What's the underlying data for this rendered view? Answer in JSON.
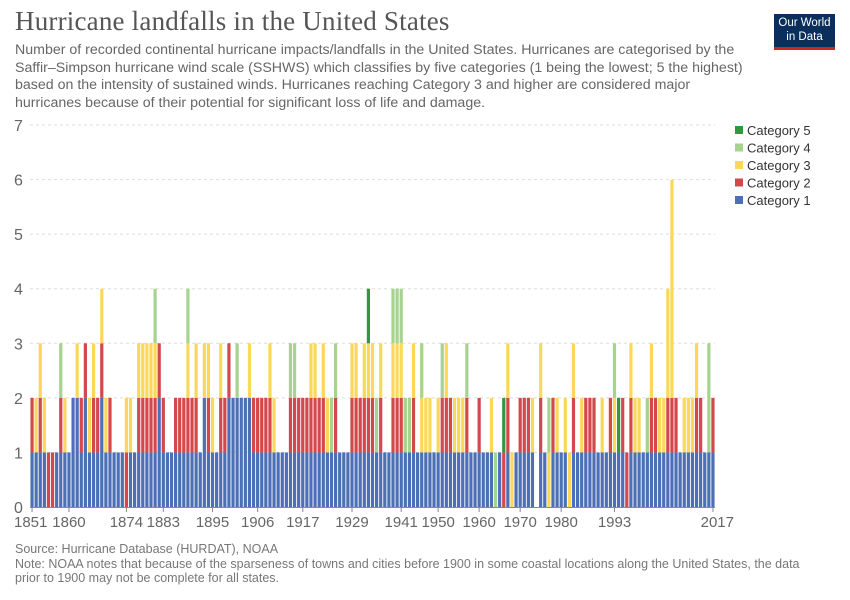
{
  "header": {
    "title": "Hurricane landfalls in the United States",
    "subtitle": "Number of recorded continental hurricane impacts/landfalls in the United States. Hurricanes are categorised by the Saffir–Simpson hurricane wind scale (SSHWS) which classifies by five categories (1 being the lowest; 5 the highest) based on the intensity of sustained winds. Hurricanes reaching Category 3 and higher are considered major hurricanes because of their potential for significant loss of life and damage.",
    "logo_line1": "Our World",
    "logo_line2": "in Data"
  },
  "footer": {
    "source": "Source: Hurricane Database (HURDAT), NOAA",
    "note": "Note: NOAA notes that because of the sparseness of towns and cities before 1900 in some coastal locations along the United States, the data prior to 1900 may not be complete for all states."
  },
  "colors": {
    "cat1": "#4c6fb5",
    "cat2": "#d4474a",
    "cat3": "#fbd85a",
    "cat4": "#a6d38f",
    "cat5": "#2e9a3e",
    "grid": "#dddddd",
    "axis": "#888888",
    "text": "#666666"
  },
  "chart_data": {
    "type": "bar",
    "stacked": true,
    "title": "Hurricane landfalls in the United States",
    "xlabel": "",
    "ylabel": "",
    "ylim": [
      0,
      7
    ],
    "yticks": [
      0,
      1,
      2,
      3,
      4,
      5,
      6,
      7
    ],
    "xticks": [
      1851,
      1860,
      1874,
      1883,
      1895,
      1906,
      1917,
      1929,
      1941,
      1950,
      1960,
      1970,
      1980,
      1993,
      2017
    ],
    "years_start": 1851,
    "years_end": 2017,
    "legend_position": "top-right",
    "series": [
      {
        "name": "Category 1",
        "key": "cat1",
        "values": [
          1,
          1,
          1,
          1,
          0,
          0,
          1,
          1,
          1,
          1,
          2,
          2,
          1,
          2,
          1,
          1,
          1,
          2,
          1,
          1,
          1,
          1,
          1,
          0,
          1,
          1,
          1,
          1,
          1,
          1,
          1,
          2,
          1,
          1,
          1,
          1,
          1,
          1,
          1,
          1,
          1,
          1,
          2,
          1,
          1,
          1,
          1,
          1,
          2,
          2,
          2,
          2,
          2,
          2,
          1,
          1,
          1,
          1,
          1,
          1,
          1,
          1,
          1,
          1,
          1,
          1,
          1,
          1,
          1,
          1,
          1,
          1,
          1,
          1,
          1,
          1,
          1,
          1,
          1,
          1,
          1,
          1,
          1,
          1,
          1,
          1,
          1,
          1,
          1,
          1,
          1,
          1,
          1,
          1,
          1,
          1,
          1,
          1,
          1,
          1,
          1,
          1,
          1,
          1,
          1,
          1,
          1,
          1,
          1,
          1,
          1,
          1,
          1,
          0,
          1,
          0,
          1,
          0,
          1,
          1,
          1,
          1,
          1,
          0,
          1,
          1,
          0,
          1,
          1,
          1,
          1,
          0,
          1,
          1,
          1,
          1,
          1,
          1,
          1,
          1,
          1,
          1,
          1,
          1,
          1,
          0,
          1,
          1,
          1,
          1,
          1,
          1,
          1,
          1,
          1,
          1,
          1,
          1,
          1,
          1,
          1,
          1,
          1,
          1,
          1,
          1,
          1
        ]
      },
      {
        "name": "Category 2",
        "key": "cat2",
        "values": [
          1,
          0,
          1,
          0,
          1,
          1,
          0,
          1,
          0,
          0,
          0,
          0,
          1,
          1,
          0,
          1,
          1,
          1,
          0,
          1,
          0,
          0,
          0,
          1,
          0,
          0,
          1,
          1,
          1,
          1,
          1,
          1,
          1,
          0,
          0,
          1,
          1,
          1,
          1,
          1,
          1,
          0,
          0,
          1,
          0,
          0,
          1,
          1,
          1,
          0,
          0,
          0,
          0,
          0,
          1,
          1,
          1,
          1,
          1,
          0,
          0,
          0,
          0,
          1,
          1,
          1,
          1,
          1,
          1,
          1,
          1,
          1,
          0,
          0,
          1,
          0,
          0,
          0,
          1,
          1,
          1,
          1,
          1,
          1,
          0,
          1,
          0,
          0,
          1,
          1,
          1,
          0,
          0,
          1,
          0,
          0,
          0,
          0,
          0,
          0,
          1,
          1,
          1,
          0,
          0,
          0,
          1,
          0,
          0,
          1,
          0,
          0,
          0,
          0,
          0,
          1,
          1,
          0,
          0,
          1,
          1,
          1,
          0,
          0,
          1,
          0,
          0,
          1,
          0,
          0,
          0,
          0,
          1,
          0,
          0,
          1,
          1,
          1,
          0,
          0,
          0,
          1,
          0,
          0,
          1,
          1,
          1,
          0,
          0,
          0,
          0,
          1,
          1,
          0,
          0,
          1,
          1,
          1,
          0,
          0,
          0,
          0,
          1,
          1,
          0,
          0,
          1
        ]
      },
      {
        "name": "Category 3",
        "key": "cat3",
        "values": [
          0,
          1,
          1,
          1,
          0,
          0,
          0,
          0,
          1,
          0,
          0,
          1,
          0,
          0,
          1,
          1,
          0,
          1,
          1,
          0,
          0,
          0,
          0,
          1,
          1,
          0,
          1,
          1,
          1,
          1,
          1,
          0,
          0,
          0,
          0,
          0,
          0,
          0,
          1,
          0,
          1,
          0,
          1,
          1,
          1,
          0,
          1,
          0,
          0,
          0,
          0,
          0,
          0,
          1,
          0,
          0,
          0,
          0,
          1,
          1,
          0,
          0,
          0,
          0,
          0,
          0,
          0,
          0,
          1,
          1,
          0,
          1,
          1,
          0,
          0,
          0,
          0,
          0,
          1,
          1,
          0,
          1,
          1,
          1,
          0,
          1,
          0,
          0,
          1,
          1,
          1,
          0,
          0,
          1,
          0,
          1,
          1,
          1,
          0,
          1,
          0,
          1,
          0,
          1,
          1,
          1,
          0,
          0,
          0,
          0,
          0,
          0,
          1,
          0,
          0,
          0,
          1,
          1,
          0,
          0,
          0,
          0,
          1,
          0,
          1,
          0,
          1,
          0,
          1,
          0,
          1,
          1,
          1,
          0,
          1,
          0,
          0,
          0,
          0,
          1,
          0,
          0,
          1,
          0,
          0,
          0,
          1,
          1,
          1,
          0,
          0,
          1,
          0,
          1,
          1,
          2,
          4,
          0,
          0,
          1,
          1,
          1,
          1,
          0,
          0,
          0,
          0
        ]
      },
      {
        "name": "Category 4",
        "key": "cat4",
        "values": [
          0,
          0,
          0,
          0,
          0,
          0,
          0,
          1,
          0,
          0,
          0,
          0,
          0,
          0,
          0,
          0,
          0,
          0,
          0,
          0,
          0,
          0,
          0,
          0,
          0,
          0,
          0,
          0,
          0,
          0,
          1,
          0,
          0,
          0,
          0,
          0,
          0,
          0,
          1,
          0,
          0,
          0,
          0,
          0,
          0,
          0,
          0,
          0,
          0,
          0,
          1,
          0,
          0,
          0,
          0,
          0,
          0,
          0,
          0,
          0,
          0,
          0,
          0,
          1,
          1,
          0,
          0,
          0,
          0,
          0,
          0,
          0,
          0,
          1,
          1,
          0,
          0,
          0,
          0,
          0,
          0,
          0,
          0,
          0,
          1,
          0,
          0,
          0,
          1,
          1,
          1,
          1,
          1,
          0,
          0,
          1,
          0,
          0,
          0,
          0,
          1,
          0,
          0,
          0,
          0,
          0,
          1,
          0,
          0,
          0,
          0,
          0,
          0,
          1,
          0,
          0,
          0,
          0,
          0,
          0,
          0,
          0,
          0,
          0,
          0,
          0,
          1,
          0,
          0,
          0,
          0,
          0,
          0,
          0,
          0,
          0,
          0,
          0,
          0,
          0,
          0,
          0,
          1,
          0,
          0,
          0,
          0,
          0,
          0,
          0,
          1,
          0,
          0,
          0,
          0,
          0,
          0,
          0,
          0,
          0,
          0,
          0,
          0,
          0,
          0,
          2,
          0
        ]
      },
      {
        "name": "Category 5",
        "key": "cat5",
        "values": [
          0,
          0,
          0,
          0,
          0,
          0,
          0,
          0,
          0,
          0,
          0,
          0,
          0,
          0,
          0,
          0,
          0,
          0,
          0,
          0,
          0,
          0,
          0,
          0,
          0,
          0,
          0,
          0,
          0,
          0,
          0,
          0,
          0,
          0,
          0,
          0,
          0,
          0,
          0,
          0,
          0,
          0,
          0,
          0,
          0,
          0,
          0,
          0,
          0,
          0,
          0,
          0,
          0,
          0,
          0,
          0,
          0,
          0,
          0,
          0,
          0,
          0,
          0,
          0,
          0,
          0,
          0,
          0,
          0,
          0,
          0,
          0,
          0,
          0,
          0,
          0,
          0,
          0,
          0,
          0,
          0,
          0,
          1,
          0,
          0,
          0,
          0,
          0,
          0,
          0,
          0,
          0,
          0,
          0,
          0,
          0,
          0,
          0,
          0,
          0,
          0,
          0,
          0,
          0,
          0,
          0,
          0,
          0,
          0,
          0,
          0,
          0,
          0,
          0,
          0,
          1,
          0,
          0,
          0,
          0,
          0,
          0,
          0,
          0,
          0,
          0,
          0,
          0,
          0,
          0,
          0,
          0,
          0,
          0,
          0,
          0,
          0,
          0,
          0,
          0,
          0,
          0,
          0,
          1,
          0,
          0,
          0,
          0,
          0,
          0,
          0,
          0,
          0,
          0,
          0,
          0,
          0,
          0,
          0,
          0,
          0,
          0,
          0,
          0,
          0,
          0,
          0
        ]
      }
    ]
  }
}
